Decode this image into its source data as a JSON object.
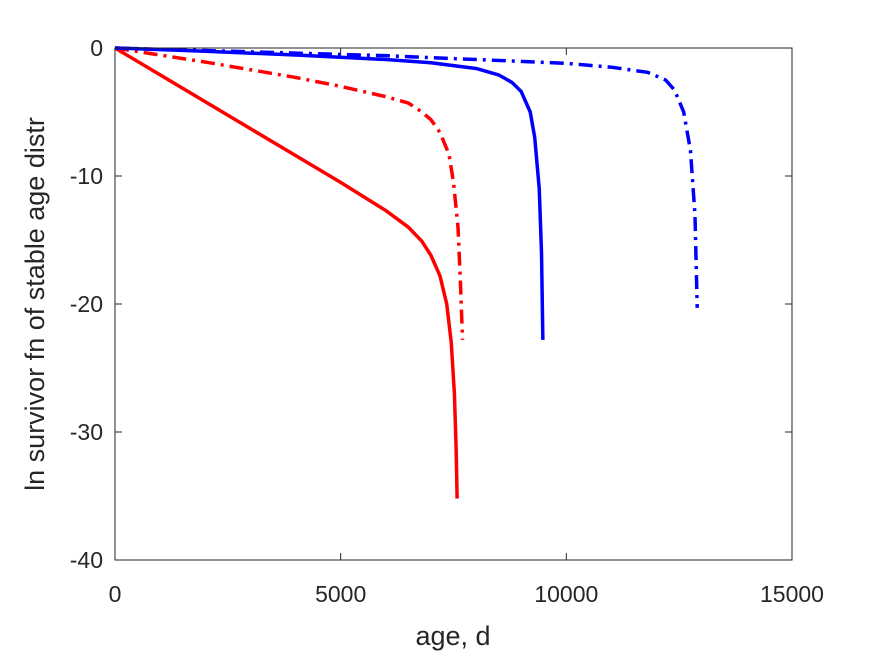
{
  "chart_data": {
    "type": "line",
    "title": "",
    "xlabel": "age, d",
    "ylabel": "ln survivor fn of stable age distr",
    "xlim": [
      0,
      15000
    ],
    "ylim": [
      -40,
      0
    ],
    "xticks": [
      0,
      5000,
      10000,
      15000
    ],
    "yticks": [
      0,
      -10,
      -20,
      -30,
      -40
    ],
    "xtick_labels": [
      "0",
      "5000",
      "10000",
      "15000"
    ],
    "ytick_labels": [
      "0",
      "-10",
      "-20",
      "-30",
      "-40"
    ],
    "grid": false,
    "legend": "none",
    "series": [
      {
        "color": "#ff0000",
        "style": "solid",
        "x": [
          0,
          1000,
          2000,
          3000,
          4000,
          5000,
          5500,
          6000,
          6500,
          6800,
          7000,
          7200,
          7350,
          7450,
          7520,
          7560,
          7580
        ],
        "y": [
          0,
          -2.1,
          -4.2,
          -6.3,
          -8.4,
          -10.5,
          -11.6,
          -12.7,
          -14.0,
          -15.1,
          -16.2,
          -17.8,
          -20.0,
          -23.0,
          -27.0,
          -31.5,
          -35.2
        ]
      },
      {
        "color": "#ff0000",
        "style": "dashdot",
        "x": [
          0,
          1000,
          2000,
          3000,
          4000,
          5000,
          6000,
          6500,
          6800,
          7000,
          7200,
          7400,
          7500,
          7600,
          7650,
          7700
        ],
        "y": [
          0,
          -0.55,
          -1.1,
          -1.7,
          -2.3,
          -3.0,
          -3.8,
          -4.3,
          -5.0,
          -5.6,
          -6.6,
          -8.3,
          -10.5,
          -14.0,
          -18.0,
          -22.8
        ]
      },
      {
        "color": "#0000ff",
        "style": "solid",
        "x": [
          0,
          2000,
          4000,
          6000,
          7000,
          8000,
          8500,
          8800,
          9000,
          9200,
          9300,
          9400,
          9450,
          9480
        ],
        "y": [
          0,
          -0.25,
          -0.55,
          -0.9,
          -1.15,
          -1.6,
          -2.1,
          -2.7,
          -3.4,
          -5.0,
          -7.0,
          -11.0,
          -16.0,
          -22.8
        ]
      },
      {
        "color": "#0000ff",
        "style": "dashdot",
        "x": [
          0,
          2000,
          4000,
          6000,
          8000,
          10000,
          11000,
          11800,
          12200,
          12400,
          12600,
          12750,
          12850,
          12900
        ],
        "y": [
          0,
          -0.2,
          -0.4,
          -0.6,
          -0.9,
          -1.2,
          -1.5,
          -1.9,
          -2.5,
          -3.3,
          -5.0,
          -8.0,
          -13.0,
          -20.3
        ]
      }
    ]
  }
}
